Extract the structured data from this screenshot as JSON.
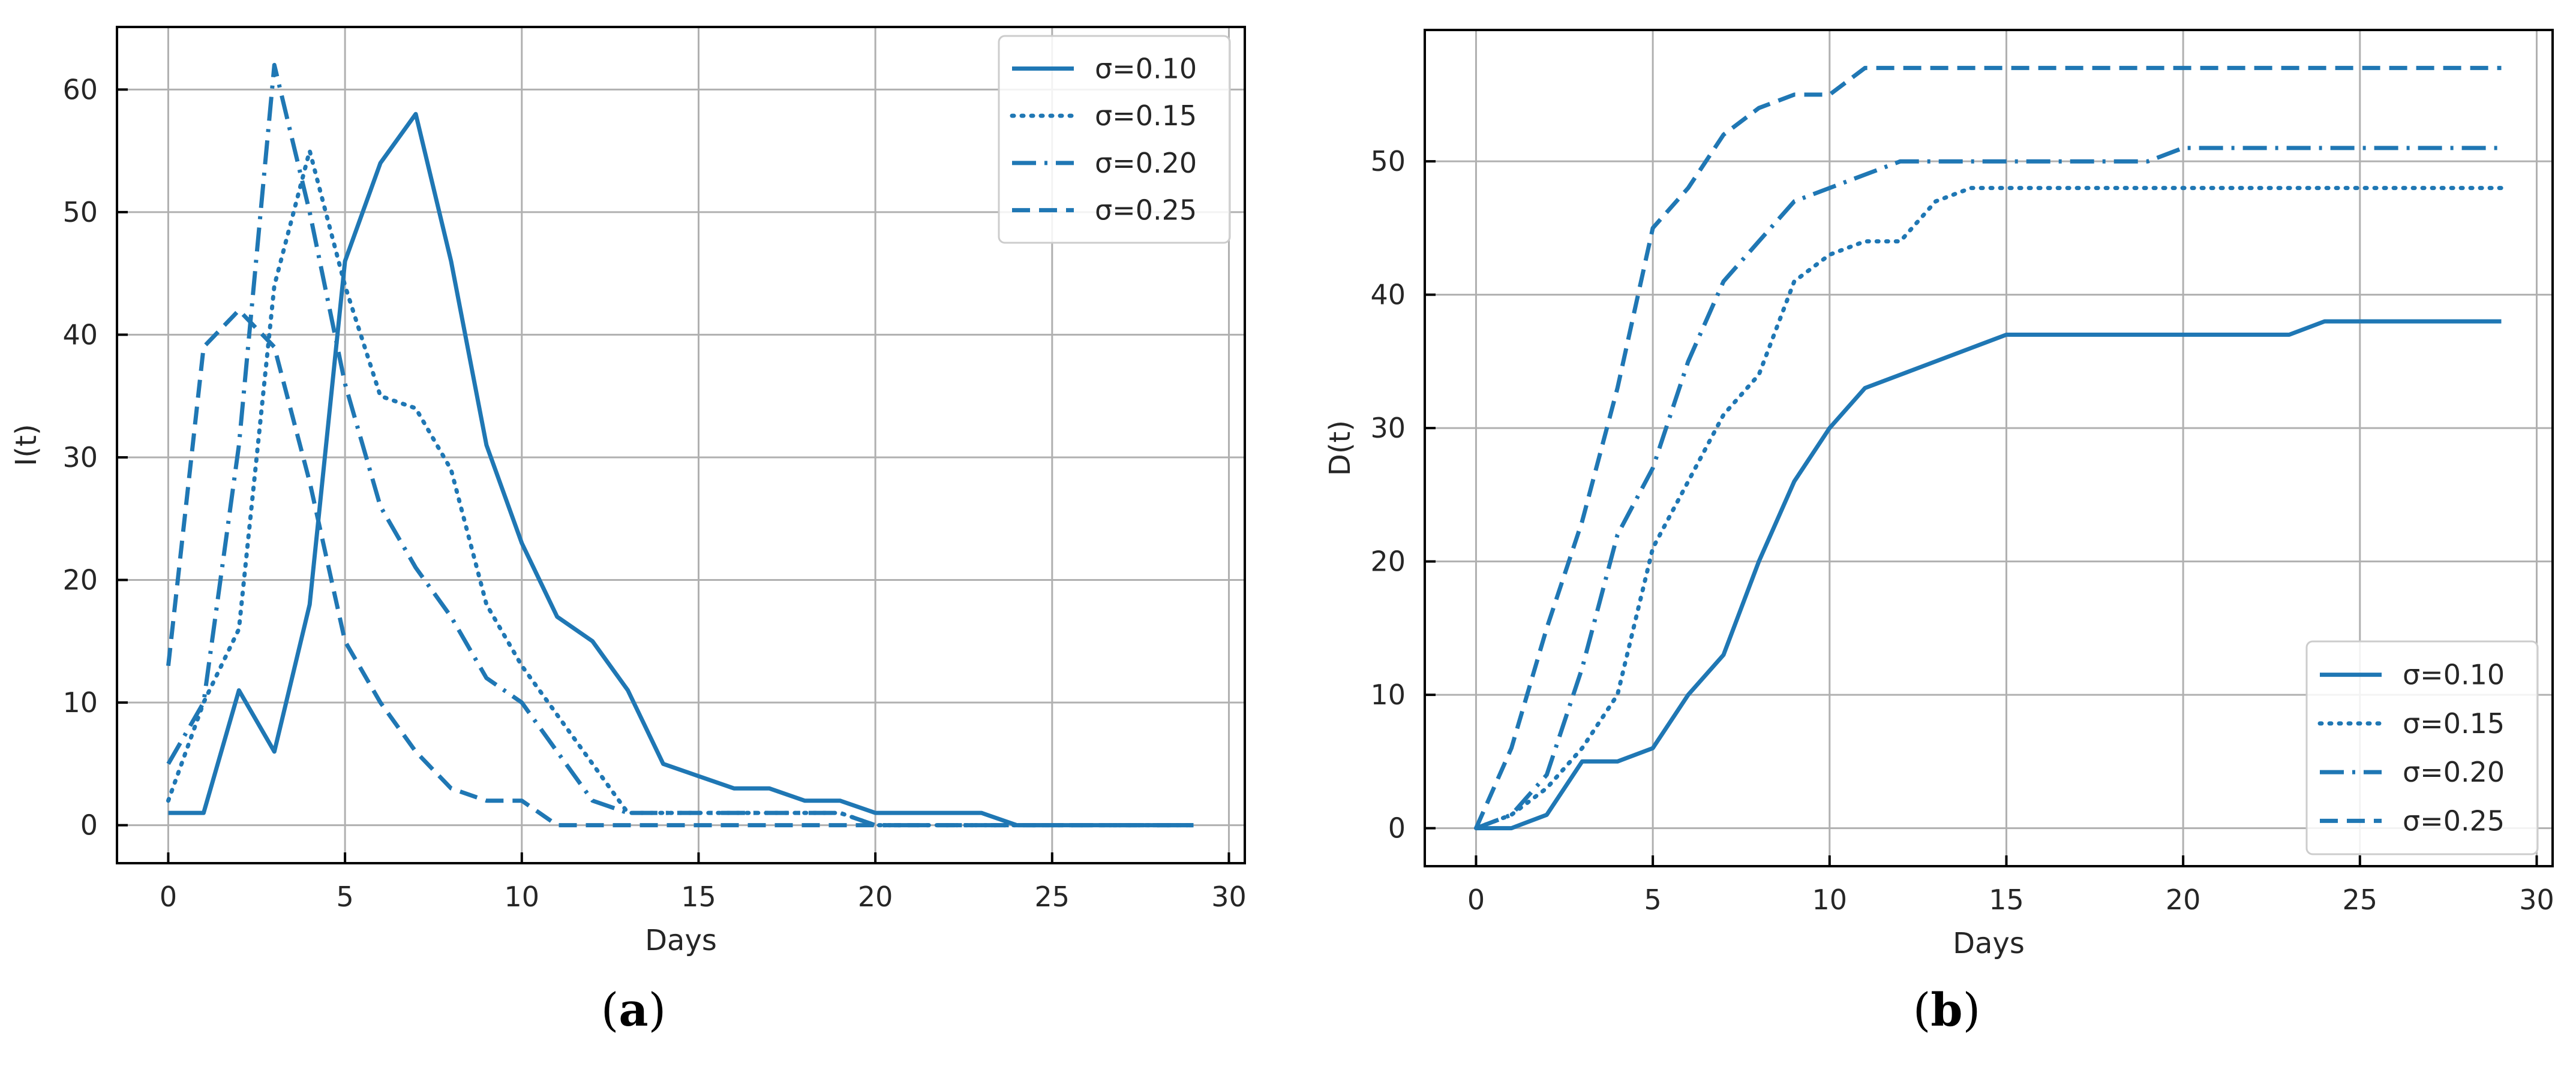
{
  "chart_data": [
    {
      "type": "line",
      "panel_label": "a",
      "xlabel": "Days",
      "ylabel": "I(t)",
      "xlim": [
        -1.45,
        30.45
      ],
      "ylim": [
        -3.1,
        65.1
      ],
      "xticks": [
        0,
        5,
        10,
        15,
        20,
        25,
        30
      ],
      "yticks": [
        0,
        10,
        20,
        30,
        40,
        50,
        60
      ],
      "grid": true,
      "legend_position": "top-right",
      "color": "#1f77b4",
      "x": [
        0,
        1,
        2,
        3,
        4,
        5,
        6,
        7,
        8,
        9,
        10,
        11,
        12,
        13,
        14,
        15,
        16,
        17,
        18,
        19,
        20,
        21,
        22,
        23,
        24,
        25,
        26,
        27,
        28,
        29
      ],
      "series": [
        {
          "name": "σ=0.10",
          "style": "solid",
          "values": [
            1,
            1,
            11,
            6,
            18,
            46,
            54,
            58,
            46,
            31,
            23,
            17,
            15,
            11,
            5,
            4,
            3,
            3,
            2,
            2,
            1,
            1,
            1,
            1,
            0,
            0,
            0,
            0,
            0,
            0
          ]
        },
        {
          "name": "σ=0.15",
          "style": "dotted",
          "values": [
            2,
            10,
            16,
            44,
            55,
            44,
            35,
            34,
            29,
            18,
            13,
            9,
            5,
            1,
            1,
            1,
            1,
            1,
            1,
            1,
            0,
            0,
            0,
            0,
            0,
            0,
            0,
            0,
            0,
            0
          ]
        },
        {
          "name": "σ=0.20",
          "style": "dashdot",
          "values": [
            5,
            10,
            31,
            62,
            50,
            36,
            26,
            21,
            17,
            12,
            10,
            6,
            2,
            1,
            1,
            1,
            1,
            1,
            1,
            1,
            0,
            0,
            0,
            0,
            0,
            0,
            0,
            0,
            0,
            0
          ]
        },
        {
          "name": "σ=0.25",
          "style": "dashed",
          "values": [
            13,
            39,
            42,
            39,
            28,
            15,
            10,
            6,
            3,
            2,
            2,
            0,
            0,
            0,
            0,
            0,
            0,
            0,
            0,
            0,
            0,
            0,
            0,
            0,
            0,
            0,
            0,
            0,
            0,
            0
          ]
        }
      ]
    },
    {
      "type": "line",
      "panel_label": "b",
      "xlabel": "Days",
      "ylabel": "D(t)",
      "xlim": [
        -1.45,
        30.45
      ],
      "ylim": [
        -2.85,
        59.85
      ],
      "xticks": [
        0,
        5,
        10,
        15,
        20,
        25,
        30
      ],
      "yticks": [
        0,
        10,
        20,
        30,
        40,
        50
      ],
      "grid": true,
      "legend_position": "bottom-right",
      "color": "#1f77b4",
      "x": [
        0,
        1,
        2,
        3,
        4,
        5,
        6,
        7,
        8,
        9,
        10,
        11,
        12,
        13,
        14,
        15,
        16,
        17,
        18,
        19,
        20,
        21,
        22,
        23,
        24,
        25,
        26,
        27,
        28,
        29
      ],
      "series": [
        {
          "name": "σ=0.10",
          "style": "solid",
          "values": [
            0,
            0,
            1,
            5,
            5,
            6,
            10,
            13,
            20,
            26,
            30,
            33,
            34,
            35,
            36,
            37,
            37,
            37,
            37,
            37,
            37,
            37,
            37,
            37,
            38,
            38,
            38,
            38,
            38,
            38
          ]
        },
        {
          "name": "σ=0.15",
          "style": "dotted",
          "values": [
            0,
            1,
            3,
            6,
            10,
            21,
            26,
            31,
            34,
            41,
            43,
            44,
            44,
            47,
            48,
            48,
            48,
            48,
            48,
            48,
            48,
            48,
            48,
            48,
            48,
            48,
            48,
            48,
            48,
            48
          ]
        },
        {
          "name": "σ=0.20",
          "style": "dashdot",
          "values": [
            0,
            1,
            4,
            12,
            22,
            27,
            35,
            41,
            44,
            47,
            48,
            49,
            50,
            50,
            50,
            50,
            50,
            50,
            50,
            50,
            51,
            51,
            51,
            51,
            51,
            51,
            51,
            51,
            51,
            51
          ]
        },
        {
          "name": "σ=0.25",
          "style": "dashed",
          "values": [
            0,
            6,
            15,
            23,
            33,
            45,
            48,
            52,
            54,
            55,
            55,
            57,
            57,
            57,
            57,
            57,
            57,
            57,
            57,
            57,
            57,
            57,
            57,
            57,
            57,
            57,
            57,
            57,
            57,
            57
          ]
        }
      ]
    }
  ]
}
